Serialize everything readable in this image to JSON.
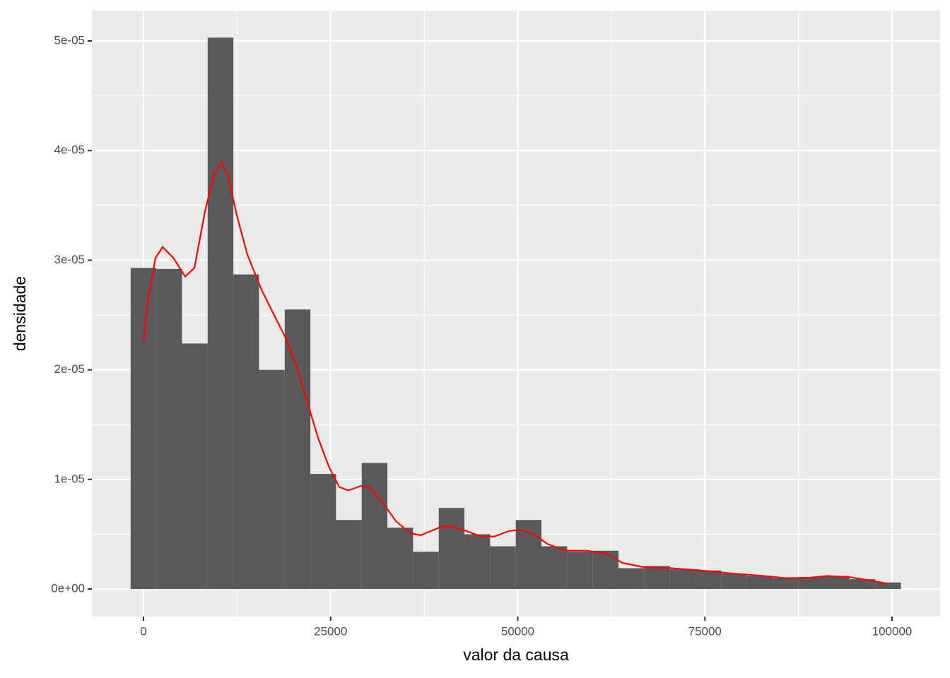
{
  "chart_data": {
    "type": "histogram",
    "x_label": "valor da causa",
    "y_label": "densidade",
    "bins": [
      -1715,
      1715,
      5145,
      8575,
      12005,
      15435,
      18865,
      22295,
      25725,
      29155,
      32585,
      36015,
      39445,
      42875,
      46305,
      49735,
      53165,
      56595,
      60025,
      63455,
      66885,
      70315,
      73745,
      77175,
      80605,
      84035,
      87465,
      90895,
      94325,
      97755,
      101185
    ],
    "values": [
      2.93e-05,
      2.92e-05,
      2.24e-05,
      5.03e-05,
      2.87e-05,
      2e-05,
      2.55e-05,
      1.05e-05,
      6.3e-06,
      1.15e-05,
      5.6e-06,
      3.4e-06,
      7.4e-06,
      5e-06,
      3.9e-06,
      6.3e-06,
      3.9e-06,
      3.4e-06,
      3.5e-06,
      1.9e-06,
      2.1e-06,
      1.8e-06,
      1.7e-06,
      1.4e-06,
      1.2e-06,
      1e-06,
      1.1e-06,
      1.2e-06,
      9e-07,
      6e-07
    ],
    "color": "#595959",
    "density": {
      "color": "#ff0000",
      "x": [
        0,
        660,
        1600,
        2550,
        4000,
        5570,
        6800,
        8200,
        9440,
        10400,
        11330,
        12460,
        13880,
        15770,
        17660,
        19070,
        20490,
        21900,
        23320,
        24740,
        26160,
        27380,
        28990,
        30120,
        31820,
        33710,
        35600,
        37020,
        38430,
        39850,
        41270,
        43150,
        45040,
        46930,
        48820,
        50240,
        52120,
        54010,
        56370,
        59210,
        62040,
        63930,
        66760,
        70540,
        74320,
        79040,
        82820,
        85650,
        88480,
        91310,
        94150,
        96980,
        99340
      ],
      "y": [
        2.27e-05,
        2.67e-05,
        3.02e-05,
        3.12e-05,
        3.02e-05,
        2.85e-05,
        2.93e-05,
        3.44e-05,
        3.79e-05,
        3.89e-05,
        3.76e-05,
        3.41e-05,
        3.05e-05,
        2.73e-05,
        2.47e-05,
        2.28e-05,
        2.02e-05,
        1.7e-05,
        1.38e-05,
        1.12e-05,
        9.3e-06,
        9e-06,
        9.4e-06,
        9.3e-06,
        8e-06,
        6.2e-06,
        5.1e-06,
        4.9e-06,
        5.3e-06,
        5.7e-06,
        5.7e-06,
        5.3e-06,
        4.8e-06,
        4.8e-06,
        5.3e-06,
        5.4e-06,
        5e-06,
        4.1e-06,
        3.5e-06,
        3.5e-06,
        3.2e-06,
        2.4e-06,
        2e-06,
        1.9e-06,
        1.7e-06,
        1.4e-06,
        1.2e-06,
        1e-06,
        1e-06,
        1.2e-06,
        1.1e-06,
        8e-07,
        5e-07
      ]
    },
    "xlim": [
      -6893,
      106420
    ],
    "ylim": [
      -2.51e-06,
      5.277e-05
    ],
    "xticks": [
      0,
      25000,
      50000,
      75000,
      100000
    ],
    "yticks": [
      {
        "value": 0,
        "label": "0e+00"
      },
      {
        "value": 1e-05,
        "label": "1e-05"
      },
      {
        "value": 2e-05,
        "label": "2e-05"
      },
      {
        "value": 3e-05,
        "label": "3e-05"
      },
      {
        "value": 4e-05,
        "label": "4e-05"
      },
      {
        "value": 5e-05,
        "label": "5e-05"
      }
    ],
    "grid": true
  }
}
